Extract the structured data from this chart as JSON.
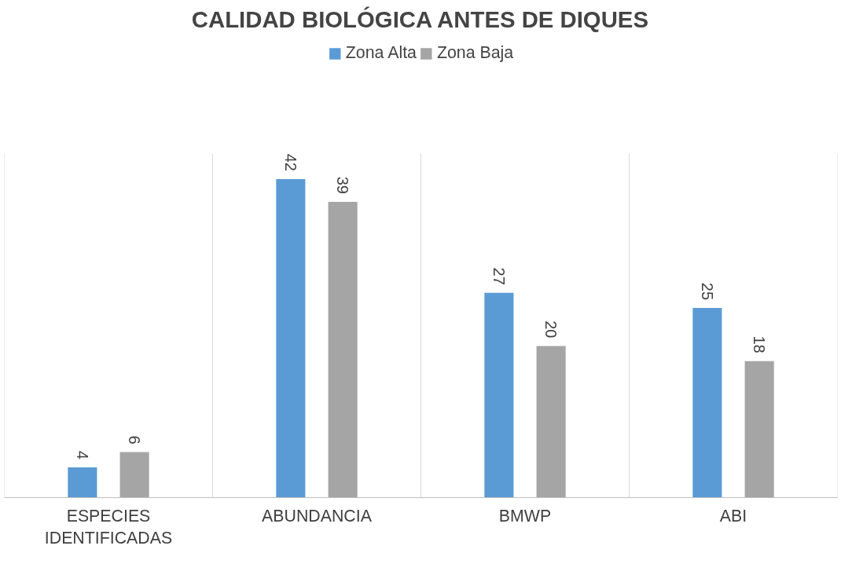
{
  "chart_data": {
    "type": "bar",
    "title": "CALIDAD BIOLÓGICA ANTES DE DIQUES",
    "categories": [
      "ESPECIES IDENTIFICADAS",
      "ABUNDANCIA",
      "BMWP",
      "ABI"
    ],
    "series": [
      {
        "name": "Zona Alta",
        "color": "#5b9bd5",
        "values": [
          4,
          42,
          27,
          25
        ]
      },
      {
        "name": "Zona Baja",
        "color": "#a5a5a5",
        "values": [
          6,
          39,
          20,
          18
        ]
      }
    ],
    "data_labels": true,
    "grid": "x",
    "legend": "top",
    "tick_labels": "x"
  }
}
